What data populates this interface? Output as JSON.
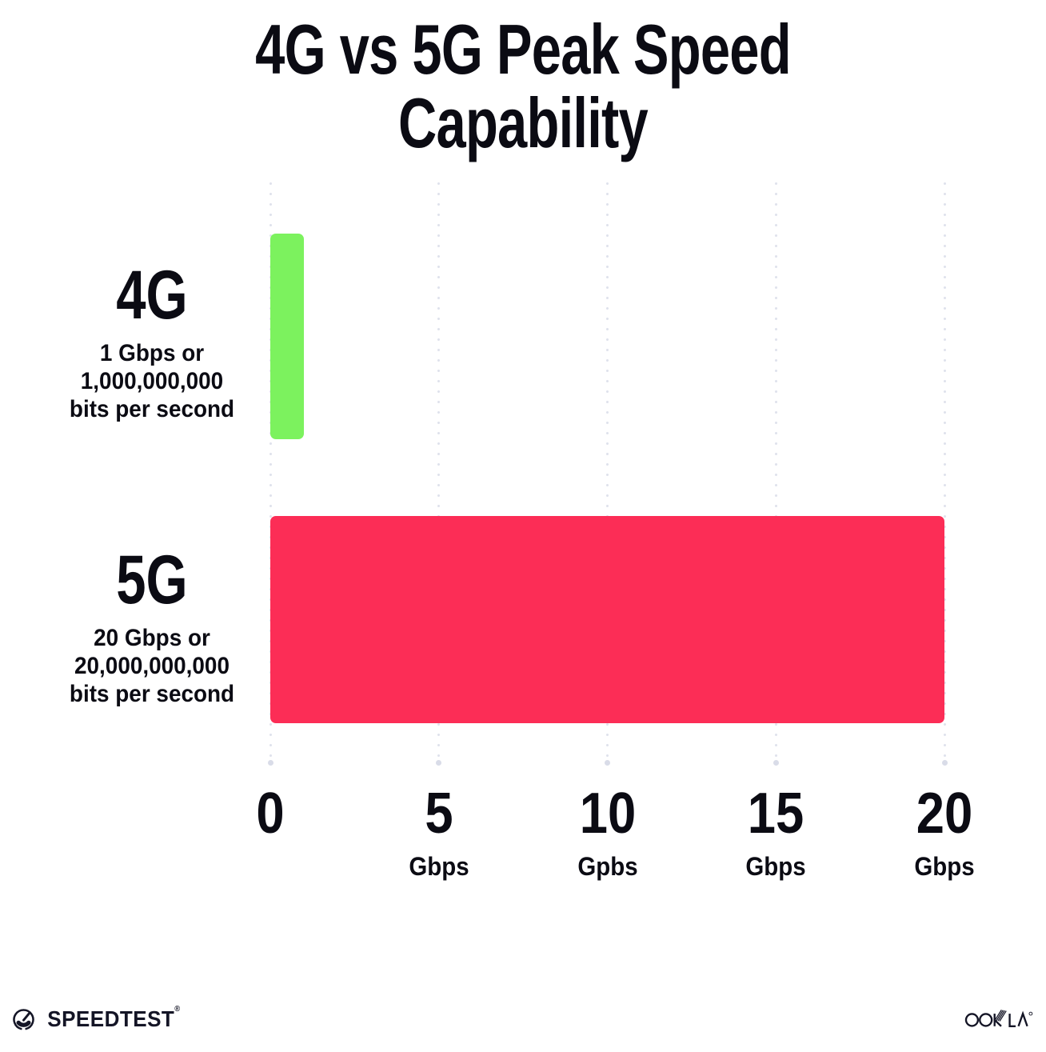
{
  "title": "4G vs 5G Peak Speed Capability",
  "chart_data": {
    "type": "bar",
    "orientation": "horizontal",
    "title": "4G vs 5G Peak Speed Capability",
    "categories": [
      "4G",
      "5G"
    ],
    "values": [
      1,
      20
    ],
    "value_unit": "Gbps",
    "xlim": [
      0,
      20
    ],
    "x_tick_values": [
      0,
      5,
      10,
      15,
      20
    ],
    "grid": "vertical dotted gridlines",
    "legend": "none",
    "bars": [
      {
        "label": "4G",
        "value": 1,
        "color": "#7cf25e",
        "desc_lines": [
          "1 Gbps or",
          "1,000,000,000",
          "bits per second"
        ]
      },
      {
        "label": "5G",
        "value": 20,
        "color": "#fc2d56",
        "desc_lines": [
          "20 Gbps or",
          "20,000,000,000",
          "bits per second"
        ]
      }
    ],
    "x_ticks": [
      {
        "num": "0",
        "unit": ""
      },
      {
        "num": "5",
        "unit": "Gbps"
      },
      {
        "num": "10",
        "unit": "Gpbs"
      },
      {
        "num": "15",
        "unit": "Gbps"
      },
      {
        "num": "20",
        "unit": "Gbps"
      }
    ]
  },
  "footer": {
    "speedtest_label": "SPEEDTEST",
    "speedtest_trademark": "®",
    "ookla_label": "OOKLA",
    "ookla_trademark": "®",
    "speedtest_icon": "gauge-icon",
    "ookla_logo": "ookla-wordmark"
  },
  "colors": {
    "background": "#ffffff",
    "text": "#0b0b13",
    "footer": "#141526",
    "bar_4g": "#7cf25e",
    "bar_5g": "#fc2d56",
    "gridline": "#dfe2ec",
    "gridline_end": "#d9dce8"
  }
}
